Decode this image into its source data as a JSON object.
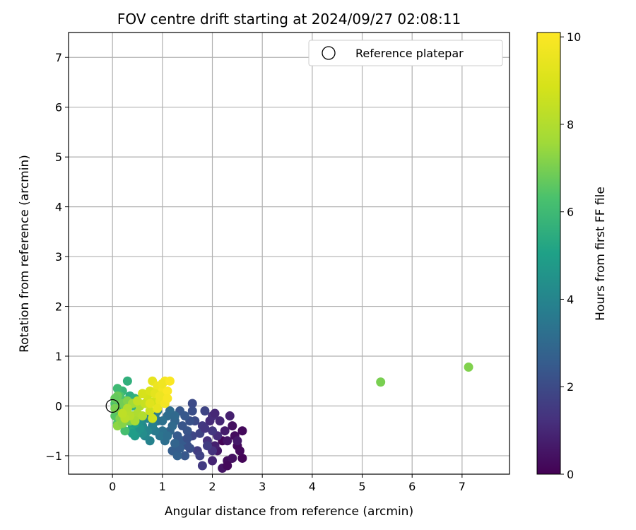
{
  "chart_data": {
    "type": "scatter",
    "title": "FOV centre drift starting at 2024/09/27 02:08:11",
    "xlabel": "Angular distance from reference (arcmin)",
    "ylabel": "Rotation from reference (arcmin)",
    "xlim": [
      -0.88,
      7.95
    ],
    "ylim": [
      -1.37,
      7.5
    ],
    "xticks": [
      0,
      1,
      2,
      3,
      4,
      5,
      6,
      7
    ],
    "yticks": [
      -1,
      0,
      1,
      2,
      3,
      4,
      5,
      6,
      7
    ],
    "grid": true,
    "legend": {
      "position": "top-right",
      "entries": [
        "Reference platepar"
      ]
    },
    "reference_point": {
      "x": 0,
      "y": 0
    },
    "colorbar": {
      "label": "Hours from first FF file",
      "min": 0,
      "max": 10.1,
      "ticks": [
        0,
        2,
        4,
        6,
        8,
        10
      ],
      "colormap": "viridis"
    },
    "series": [
      {
        "points": [
          {
            "x": 2.2,
            "y": -0.7,
            "c": 0.1
          },
          {
            "x": 2.3,
            "y": -1.1,
            "c": 0.3
          },
          {
            "x": 2.5,
            "y": -0.8,
            "c": 0.2
          },
          {
            "x": 2.4,
            "y": -1.05,
            "c": 0.4
          },
          {
            "x": 2.1,
            "y": -0.9,
            "c": 0.6
          },
          {
            "x": 2.6,
            "y": -1.05,
            "c": 0.1
          },
          {
            "x": 2.55,
            "y": -0.9,
            "c": 0.2
          },
          {
            "x": 2.2,
            "y": -1.25,
            "c": 0.5
          },
          {
            "x": 2.35,
            "y": -0.2,
            "c": 0.8
          },
          {
            "x": 2.25,
            "y": -0.5,
            "c": 0.7
          },
          {
            "x": 2.45,
            "y": -0.6,
            "c": 0.3
          },
          {
            "x": 2.0,
            "y": -1.1,
            "c": 0.9
          },
          {
            "x": 2.6,
            "y": -0.5,
            "c": 0.2
          },
          {
            "x": 2.15,
            "y": -0.3,
            "c": 1.0
          },
          {
            "x": 2.3,
            "y": -0.7,
            "c": 0.5
          },
          {
            "x": 2.1,
            "y": -0.6,
            "c": 1.1
          },
          {
            "x": 2.4,
            "y": -0.4,
            "c": 0.4
          },
          {
            "x": 2.05,
            "y": -0.8,
            "c": 0.8
          },
          {
            "x": 2.3,
            "y": -1.2,
            "c": 0.2
          },
          {
            "x": 2.5,
            "y": -0.7,
            "c": 0.6
          },
          {
            "x": 1.8,
            "y": -0.4,
            "c": 1.5
          },
          {
            "x": 1.9,
            "y": -0.7,
            "c": 1.3
          },
          {
            "x": 2.0,
            "y": -0.2,
            "c": 1.2
          },
          {
            "x": 1.7,
            "y": -0.9,
            "c": 1.6
          },
          {
            "x": 1.85,
            "y": -0.1,
            "c": 1.8
          },
          {
            "x": 2.0,
            "y": -0.5,
            "c": 1.4
          },
          {
            "x": 1.6,
            "y": -0.6,
            "c": 1.9
          },
          {
            "x": 1.75,
            "y": -1.0,
            "c": 1.7
          },
          {
            "x": 1.95,
            "y": -0.3,
            "c": 1.1
          },
          {
            "x": 2.0,
            "y": -0.9,
            "c": 1.3
          },
          {
            "x": 1.65,
            "y": -0.3,
            "c": 2.0
          },
          {
            "x": 1.8,
            "y": -1.2,
            "c": 1.5
          },
          {
            "x": 1.9,
            "y": -0.8,
            "c": 1.6
          },
          {
            "x": 1.6,
            "y": 0.05,
            "c": 2.0
          },
          {
            "x": 1.75,
            "y": -0.55,
            "c": 1.8
          },
          {
            "x": 2.05,
            "y": -0.15,
            "c": 1.0
          },
          {
            "x": 1.55,
            "y": -0.85,
            "c": 2.1
          },
          {
            "x": 1.85,
            "y": -0.45,
            "c": 1.4
          },
          {
            "x": 1.4,
            "y": -0.4,
            "c": 2.3
          },
          {
            "x": 1.5,
            "y": -0.8,
            "c": 2.2
          },
          {
            "x": 1.3,
            "y": -0.6,
            "c": 2.5
          },
          {
            "x": 1.45,
            "y": -1.0,
            "c": 2.4
          },
          {
            "x": 1.2,
            "y": -0.9,
            "c": 2.6
          },
          {
            "x": 1.35,
            "y": -0.1,
            "c": 2.4
          },
          {
            "x": 1.55,
            "y": -0.3,
            "c": 2.2
          },
          {
            "x": 1.25,
            "y": -0.3,
            "c": 2.8
          },
          {
            "x": 1.4,
            "y": -0.7,
            "c": 2.5
          },
          {
            "x": 1.3,
            "y": -1.0,
            "c": 2.7
          },
          {
            "x": 1.5,
            "y": -0.5,
            "c": 2.3
          },
          {
            "x": 1.15,
            "y": -0.5,
            "c": 2.9
          },
          {
            "x": 1.6,
            "y": -0.1,
            "c": 2.1
          },
          {
            "x": 1.35,
            "y": -0.85,
            "c": 2.6
          },
          {
            "x": 1.45,
            "y": -0.2,
            "c": 2.4
          },
          {
            "x": 1.25,
            "y": -0.75,
            "c": 2.8
          },
          {
            "x": 1.5,
            "y": -0.65,
            "c": 2.2
          },
          {
            "x": 1.1,
            "y": -0.2,
            "c": 3.1
          },
          {
            "x": 1.0,
            "y": -0.5,
            "c": 3.3
          },
          {
            "x": 0.9,
            "y": -0.3,
            "c": 3.5
          },
          {
            "x": 1.2,
            "y": -0.4,
            "c": 3.0
          },
          {
            "x": 1.05,
            "y": -0.7,
            "c": 3.2
          },
          {
            "x": 0.95,
            "y": -0.6,
            "c": 3.4
          },
          {
            "x": 1.15,
            "y": -0.1,
            "c": 3.1
          },
          {
            "x": 0.85,
            "y": -0.5,
            "c": 3.6
          },
          {
            "x": 1.0,
            "y": -0.3,
            "c": 3.3
          },
          {
            "x": 1.1,
            "y": -0.6,
            "c": 3.2
          },
          {
            "x": 0.9,
            "y": -0.1,
            "c": 3.5
          },
          {
            "x": 1.25,
            "y": -0.2,
            "c": 3.0
          },
          {
            "x": 0.8,
            "y": -0.4,
            "c": 3.8
          },
          {
            "x": 0.7,
            "y": -0.5,
            "c": 4.0
          },
          {
            "x": 0.75,
            "y": -0.7,
            "c": 3.9
          },
          {
            "x": 0.6,
            "y": -0.4,
            "c": 4.2
          },
          {
            "x": 0.65,
            "y": -0.6,
            "c": 4.1
          },
          {
            "x": 0.55,
            "y": -0.3,
            "c": 4.4
          },
          {
            "x": 0.85,
            "y": -0.2,
            "c": 3.7
          },
          {
            "x": 0.7,
            "y": -0.25,
            "c": 4.0
          },
          {
            "x": 0.6,
            "y": -0.55,
            "c": 4.3
          },
          {
            "x": 0.5,
            "y": -0.5,
            "c": 4.6
          },
          {
            "x": 0.45,
            "y": -0.6,
            "c": 4.8
          },
          {
            "x": 0.4,
            "y": -0.4,
            "c": 5.0
          },
          {
            "x": 0.55,
            "y": -0.45,
            "c": 4.5
          },
          {
            "x": 0.35,
            "y": -0.5,
            "c": 5.2
          },
          {
            "x": 0.5,
            "y": -0.2,
            "c": 4.7
          },
          {
            "x": 0.4,
            "y": -0.55,
            "c": 4.9
          },
          {
            "x": 0.3,
            "y": -0.3,
            "c": 5.3
          },
          {
            "x": 0.45,
            "y": -0.35,
            "c": 5.0
          },
          {
            "x": 0.3,
            "y": 0.5,
            "c": 5.6
          },
          {
            "x": 0.2,
            "y": 0.3,
            "c": 5.8
          },
          {
            "x": 0.1,
            "y": 0.35,
            "c": 6.0
          },
          {
            "x": 0.35,
            "y": 0.2,
            "c": 5.5
          },
          {
            "x": 0.25,
            "y": 0.1,
            "c": 5.9
          },
          {
            "x": 0.15,
            "y": -0.1,
            "c": 6.1
          },
          {
            "x": 0.05,
            "y": 0.05,
            "c": 6.3
          },
          {
            "x": 0.2,
            "y": -0.3,
            "c": 6.2
          },
          {
            "x": 0.4,
            "y": 0.0,
            "c": 5.7
          },
          {
            "x": 0.3,
            "y": -0.15,
            "c": 6.0
          },
          {
            "x": 0.1,
            "y": -0.35,
            "c": 6.4
          },
          {
            "x": 0.25,
            "y": -0.5,
            "c": 6.2
          },
          {
            "x": 0.05,
            "y": -0.2,
            "c": 6.5
          },
          {
            "x": 0.15,
            "y": 0.2,
            "c": 6.3
          },
          {
            "x": 0.45,
            "y": 0.15,
            "c": 5.6
          },
          {
            "x": 0.1,
            "y": 0.2,
            "c": 6.8
          },
          {
            "x": 0.05,
            "y": -0.05,
            "c": 7.0
          },
          {
            "x": 0.15,
            "y": -0.25,
            "c": 7.1
          },
          {
            "x": 0.25,
            "y": -0.1,
            "c": 7.2
          },
          {
            "x": 0.35,
            "y": -0.3,
            "c": 7.0
          },
          {
            "x": 0.2,
            "y": 0.05,
            "c": 6.9
          },
          {
            "x": 0.1,
            "y": -0.4,
            "c": 7.3
          },
          {
            "x": 0.3,
            "y": 0.1,
            "c": 7.1
          },
          {
            "x": 0.05,
            "y": 0.15,
            "c": 6.7
          },
          {
            "x": 0.4,
            "y": -0.2,
            "c": 7.4
          },
          {
            "x": 0.2,
            "y": -0.35,
            "c": 7.2
          },
          {
            "x": 0.4,
            "y": 0.05,
            "c": 7.7
          },
          {
            "x": 0.5,
            "y": -0.15,
            "c": 7.9
          },
          {
            "x": 0.3,
            "y": -0.05,
            "c": 8.0
          },
          {
            "x": 0.45,
            "y": -0.3,
            "c": 7.8
          },
          {
            "x": 0.35,
            "y": -0.2,
            "c": 8.1
          },
          {
            "x": 0.25,
            "y": -0.25,
            "c": 8.2
          },
          {
            "x": 0.55,
            "y": 0.0,
            "c": 7.9
          },
          {
            "x": 0.2,
            "y": -0.15,
            "c": 8.3
          },
          {
            "x": 0.6,
            "y": -0.2,
            "c": 8.0
          },
          {
            "x": 0.5,
            "y": 0.1,
            "c": 8.4
          },
          {
            "x": 0.65,
            "y": 0.05,
            "c": 8.5
          },
          {
            "x": 0.75,
            "y": -0.1,
            "c": 8.6
          },
          {
            "x": 0.7,
            "y": 0.2,
            "c": 8.8
          },
          {
            "x": 0.8,
            "y": -0.25,
            "c": 8.7
          },
          {
            "x": 0.6,
            "y": 0.25,
            "c": 8.9
          },
          {
            "x": 0.85,
            "y": 0.1,
            "c": 8.8
          },
          {
            "x": 0.75,
            "y": 0.3,
            "c": 9.0
          },
          {
            "x": 0.8,
            "y": 0.5,
            "c": 9.4
          },
          {
            "x": 0.9,
            "y": 0.4,
            "c": 9.6
          },
          {
            "x": 1.0,
            "y": 0.3,
            "c": 9.8
          },
          {
            "x": 0.95,
            "y": 0.1,
            "c": 9.5
          },
          {
            "x": 1.05,
            "y": 0.5,
            "c": 9.9
          },
          {
            "x": 0.85,
            "y": 0.25,
            "c": 9.3
          },
          {
            "x": 1.1,
            "y": 0.3,
            "c": 10.0
          },
          {
            "x": 0.9,
            "y": -0.05,
            "c": 9.4
          },
          {
            "x": 1.0,
            "y": 0.45,
            "c": 9.7
          },
          {
            "x": 1.15,
            "y": 0.5,
            "c": 10.0
          },
          {
            "x": 0.95,
            "y": 0.2,
            "c": 9.6
          },
          {
            "x": 1.05,
            "y": 0.05,
            "c": 9.8
          },
          {
            "x": 0.75,
            "y": 0.05,
            "c": 9.2
          },
          {
            "x": 1.1,
            "y": 0.15,
            "c": 9.9
          },
          {
            "x": 5.37,
            "y": 0.48,
            "c": 7.0
          },
          {
            "x": 7.13,
            "y": 0.78,
            "c": 7.1
          }
        ]
      }
    ]
  }
}
